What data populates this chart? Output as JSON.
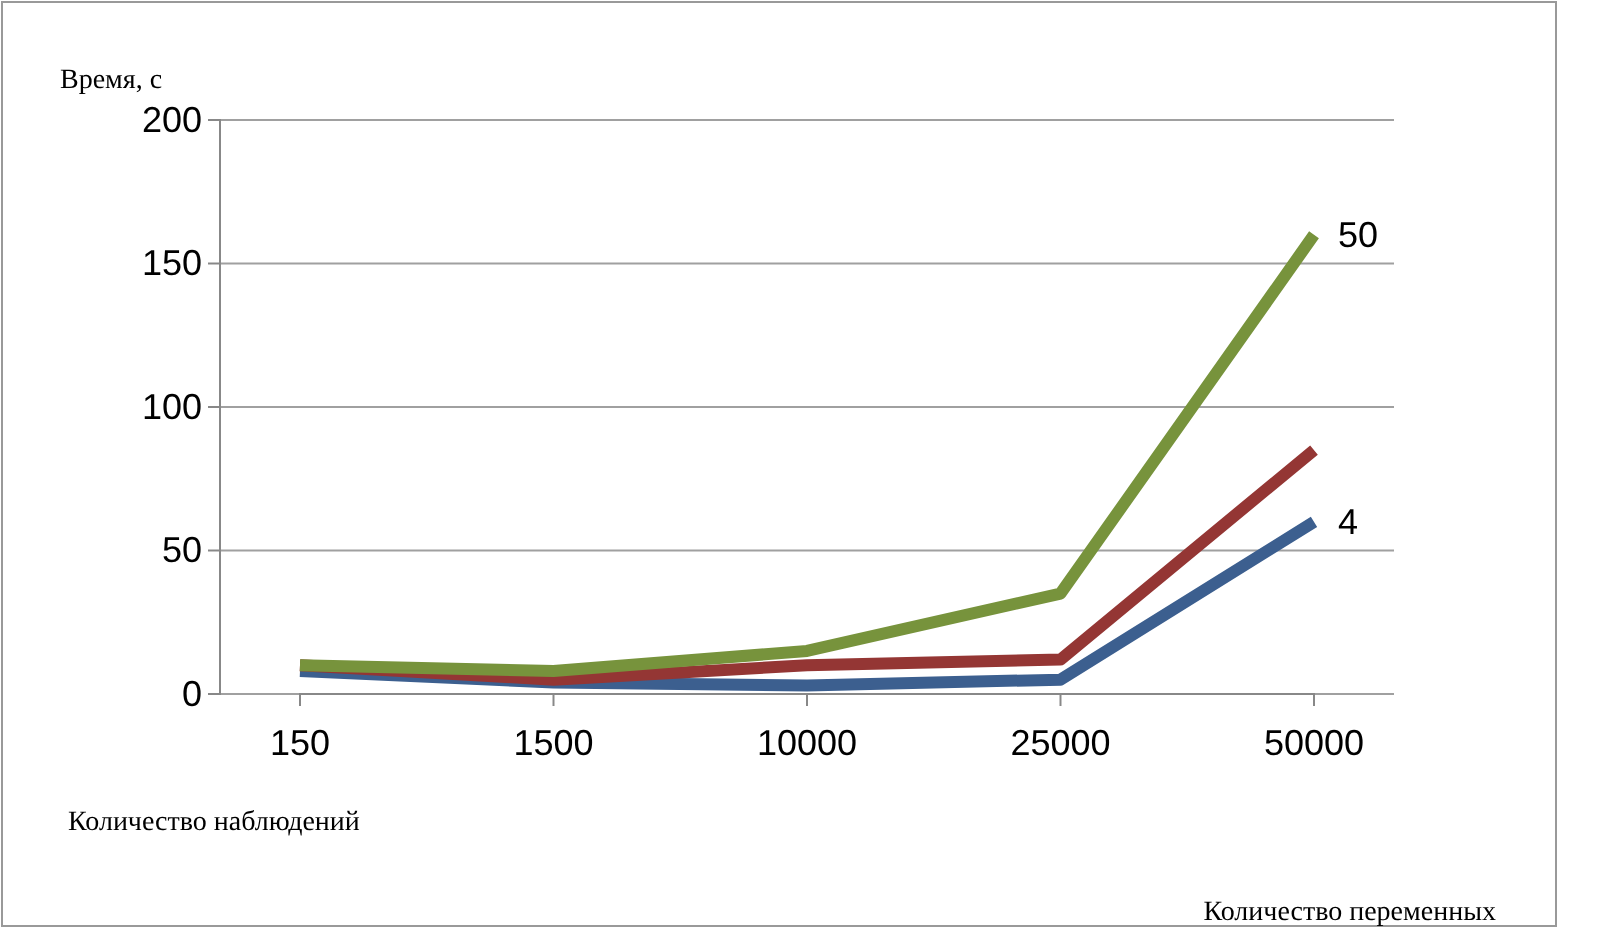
{
  "chart_data": {
    "type": "line",
    "ylabel": "Время, с",
    "xlabel": "Количество наблюдений",
    "annotations": [
      "Количество переменных"
    ],
    "categories": [
      "150",
      "1500",
      "10000",
      "25000",
      "50000"
    ],
    "series": [
      {
        "name": "4",
        "color": "#3c5f8f",
        "values": [
          8,
          4,
          3,
          5,
          60
        ]
      },
      {
        "color": "#943634",
        "values": [
          10,
          5,
          10,
          12,
          85
        ]
      },
      {
        "name": "50",
        "color": "#77933c",
        "values": [
          10,
          8,
          15,
          35,
          160
        ]
      }
    ],
    "ylim": [
      0,
      200
    ],
    "yticks": [
      0,
      50,
      100,
      150,
      200
    ],
    "grid": "y",
    "legend": false,
    "line_style": "solid",
    "marker": "none"
  }
}
